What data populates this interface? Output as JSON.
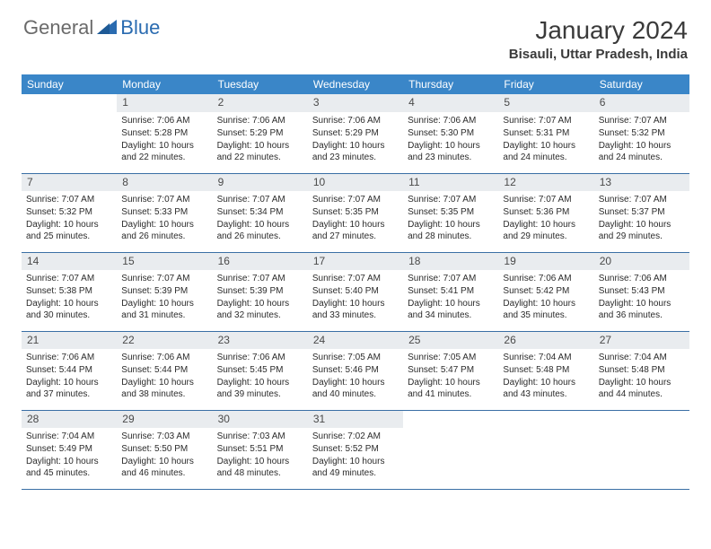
{
  "logo": {
    "text1": "General",
    "text2": "Blue"
  },
  "title": "January 2024",
  "location": "Bisauli, Uttar Pradesh, India",
  "colors": {
    "header_bg": "#3a86c8",
    "header_text": "#ffffff",
    "daynum_bg": "#e9ecef",
    "border": "#3a6fa5",
    "logo_gray": "#6a6a6a",
    "logo_blue": "#2a6bb0"
  },
  "dow": [
    "Sunday",
    "Monday",
    "Tuesday",
    "Wednesday",
    "Thursday",
    "Friday",
    "Saturday"
  ],
  "weeks": [
    [
      {
        "n": "",
        "sr": "",
        "ss": "",
        "dl": ""
      },
      {
        "n": "1",
        "sr": "Sunrise: 7:06 AM",
        "ss": "Sunset: 5:28 PM",
        "dl": "Daylight: 10 hours and 22 minutes."
      },
      {
        "n": "2",
        "sr": "Sunrise: 7:06 AM",
        "ss": "Sunset: 5:29 PM",
        "dl": "Daylight: 10 hours and 22 minutes."
      },
      {
        "n": "3",
        "sr": "Sunrise: 7:06 AM",
        "ss": "Sunset: 5:29 PM",
        "dl": "Daylight: 10 hours and 23 minutes."
      },
      {
        "n": "4",
        "sr": "Sunrise: 7:06 AM",
        "ss": "Sunset: 5:30 PM",
        "dl": "Daylight: 10 hours and 23 minutes."
      },
      {
        "n": "5",
        "sr": "Sunrise: 7:07 AM",
        "ss": "Sunset: 5:31 PM",
        "dl": "Daylight: 10 hours and 24 minutes."
      },
      {
        "n": "6",
        "sr": "Sunrise: 7:07 AM",
        "ss": "Sunset: 5:32 PM",
        "dl": "Daylight: 10 hours and 24 minutes."
      }
    ],
    [
      {
        "n": "7",
        "sr": "Sunrise: 7:07 AM",
        "ss": "Sunset: 5:32 PM",
        "dl": "Daylight: 10 hours and 25 minutes."
      },
      {
        "n": "8",
        "sr": "Sunrise: 7:07 AM",
        "ss": "Sunset: 5:33 PM",
        "dl": "Daylight: 10 hours and 26 minutes."
      },
      {
        "n": "9",
        "sr": "Sunrise: 7:07 AM",
        "ss": "Sunset: 5:34 PM",
        "dl": "Daylight: 10 hours and 26 minutes."
      },
      {
        "n": "10",
        "sr": "Sunrise: 7:07 AM",
        "ss": "Sunset: 5:35 PM",
        "dl": "Daylight: 10 hours and 27 minutes."
      },
      {
        "n": "11",
        "sr": "Sunrise: 7:07 AM",
        "ss": "Sunset: 5:35 PM",
        "dl": "Daylight: 10 hours and 28 minutes."
      },
      {
        "n": "12",
        "sr": "Sunrise: 7:07 AM",
        "ss": "Sunset: 5:36 PM",
        "dl": "Daylight: 10 hours and 29 minutes."
      },
      {
        "n": "13",
        "sr": "Sunrise: 7:07 AM",
        "ss": "Sunset: 5:37 PM",
        "dl": "Daylight: 10 hours and 29 minutes."
      }
    ],
    [
      {
        "n": "14",
        "sr": "Sunrise: 7:07 AM",
        "ss": "Sunset: 5:38 PM",
        "dl": "Daylight: 10 hours and 30 minutes."
      },
      {
        "n": "15",
        "sr": "Sunrise: 7:07 AM",
        "ss": "Sunset: 5:39 PM",
        "dl": "Daylight: 10 hours and 31 minutes."
      },
      {
        "n": "16",
        "sr": "Sunrise: 7:07 AM",
        "ss": "Sunset: 5:39 PM",
        "dl": "Daylight: 10 hours and 32 minutes."
      },
      {
        "n": "17",
        "sr": "Sunrise: 7:07 AM",
        "ss": "Sunset: 5:40 PM",
        "dl": "Daylight: 10 hours and 33 minutes."
      },
      {
        "n": "18",
        "sr": "Sunrise: 7:07 AM",
        "ss": "Sunset: 5:41 PM",
        "dl": "Daylight: 10 hours and 34 minutes."
      },
      {
        "n": "19",
        "sr": "Sunrise: 7:06 AM",
        "ss": "Sunset: 5:42 PM",
        "dl": "Daylight: 10 hours and 35 minutes."
      },
      {
        "n": "20",
        "sr": "Sunrise: 7:06 AM",
        "ss": "Sunset: 5:43 PM",
        "dl": "Daylight: 10 hours and 36 minutes."
      }
    ],
    [
      {
        "n": "21",
        "sr": "Sunrise: 7:06 AM",
        "ss": "Sunset: 5:44 PM",
        "dl": "Daylight: 10 hours and 37 minutes."
      },
      {
        "n": "22",
        "sr": "Sunrise: 7:06 AM",
        "ss": "Sunset: 5:44 PM",
        "dl": "Daylight: 10 hours and 38 minutes."
      },
      {
        "n": "23",
        "sr": "Sunrise: 7:06 AM",
        "ss": "Sunset: 5:45 PM",
        "dl": "Daylight: 10 hours and 39 minutes."
      },
      {
        "n": "24",
        "sr": "Sunrise: 7:05 AM",
        "ss": "Sunset: 5:46 PM",
        "dl": "Daylight: 10 hours and 40 minutes."
      },
      {
        "n": "25",
        "sr": "Sunrise: 7:05 AM",
        "ss": "Sunset: 5:47 PM",
        "dl": "Daylight: 10 hours and 41 minutes."
      },
      {
        "n": "26",
        "sr": "Sunrise: 7:04 AM",
        "ss": "Sunset: 5:48 PM",
        "dl": "Daylight: 10 hours and 43 minutes."
      },
      {
        "n": "27",
        "sr": "Sunrise: 7:04 AM",
        "ss": "Sunset: 5:48 PM",
        "dl": "Daylight: 10 hours and 44 minutes."
      }
    ],
    [
      {
        "n": "28",
        "sr": "Sunrise: 7:04 AM",
        "ss": "Sunset: 5:49 PM",
        "dl": "Daylight: 10 hours and 45 minutes."
      },
      {
        "n": "29",
        "sr": "Sunrise: 7:03 AM",
        "ss": "Sunset: 5:50 PM",
        "dl": "Daylight: 10 hours and 46 minutes."
      },
      {
        "n": "30",
        "sr": "Sunrise: 7:03 AM",
        "ss": "Sunset: 5:51 PM",
        "dl": "Daylight: 10 hours and 48 minutes."
      },
      {
        "n": "31",
        "sr": "Sunrise: 7:02 AM",
        "ss": "Sunset: 5:52 PM",
        "dl": "Daylight: 10 hours and 49 minutes."
      },
      {
        "n": "",
        "sr": "",
        "ss": "",
        "dl": ""
      },
      {
        "n": "",
        "sr": "",
        "ss": "",
        "dl": ""
      },
      {
        "n": "",
        "sr": "",
        "ss": "",
        "dl": ""
      }
    ]
  ]
}
